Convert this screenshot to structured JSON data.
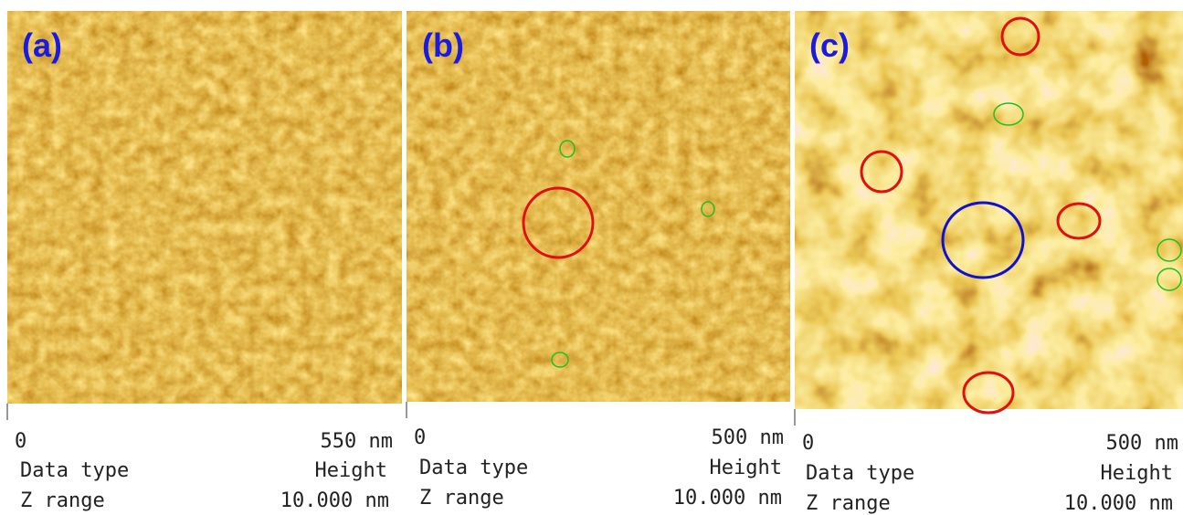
{
  "panels": [
    {
      "label": "(a)",
      "scale_start": "0",
      "scale_end": "550 nm",
      "data_type_label": "Data type",
      "data_type": "Height",
      "z_range_label": "Z range",
      "z_range": "10.000 nm"
    },
    {
      "label": "(b)",
      "scale_start": "0",
      "scale_end": "500 nm",
      "data_type_label": "Data type",
      "data_type": "Height",
      "z_range_label": "Z range",
      "z_range": "10.000 nm"
    },
    {
      "label": "(c)",
      "scale_start": "0",
      "scale_end": "500 nm",
      "data_type_label": "Data type",
      "data_type": "Height",
      "z_range_label": "Z range",
      "z_range": "10.000 nm"
    }
  ]
}
